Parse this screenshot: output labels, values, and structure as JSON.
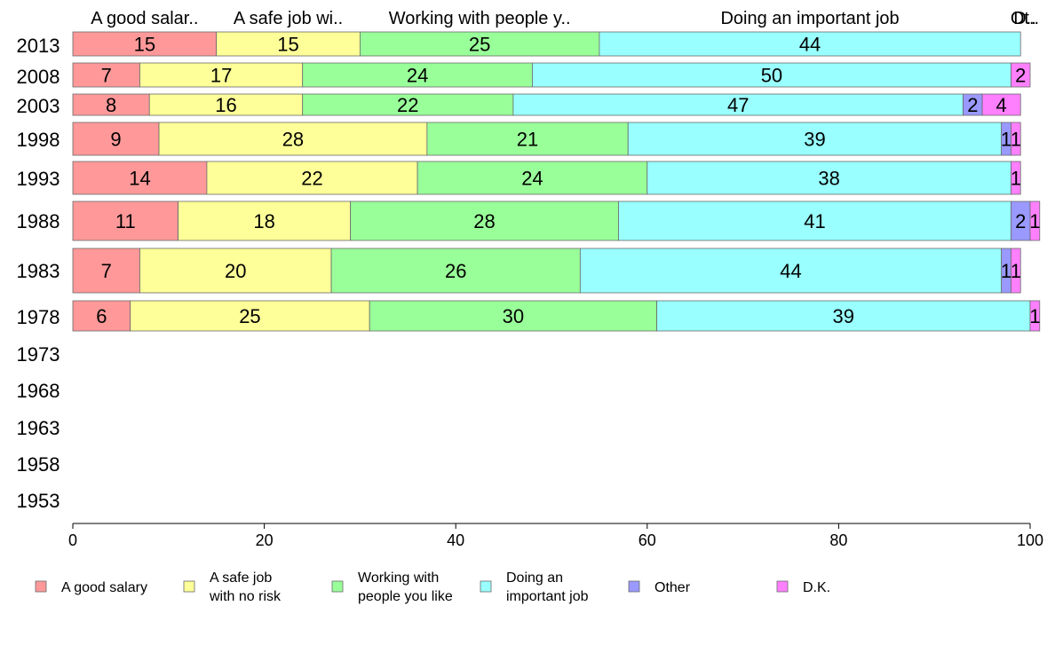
{
  "chart_data": {
    "type": "bar",
    "orientation": "horizontal",
    "stacked": true,
    "xlim": [
      0,
      100
    ],
    "x_ticks": [
      0,
      20,
      40,
      60,
      80,
      100
    ],
    "grid": false,
    "legend_position": "bottom",
    "categories": [
      "2013",
      "2008",
      "2003",
      "1998",
      "1993",
      "1988",
      "1983",
      "1978",
      "1973",
      "1968",
      "1963",
      "1958",
      "1953"
    ],
    "header_labels": [
      "A good salar..",
      "A safe job wi..",
      "Working with people y..",
      "Doing an important job",
      "Ot..",
      "D.."
    ],
    "series": [
      {
        "name": "A good salary",
        "legend_lines": [
          "A good salary"
        ],
        "color": "#ff9999",
        "values": [
          15,
          7,
          8,
          9,
          14,
          11,
          7,
          6,
          null,
          null,
          null,
          null,
          null
        ],
        "labels": [
          "15",
          "7",
          "8",
          "9",
          "14",
          "11",
          "7",
          "6",
          "",
          "",
          "",
          "",
          ""
        ]
      },
      {
        "name": "A safe job with no risk",
        "legend_lines": [
          "A safe job",
          "with no risk"
        ],
        "color": "#ffff99",
        "values": [
          15,
          17,
          16,
          28,
          22,
          18,
          20,
          25,
          null,
          null,
          null,
          null,
          null
        ],
        "labels": [
          "15",
          "17",
          "16",
          "28",
          "22",
          "18",
          "20",
          "25",
          "",
          "",
          "",
          "",
          ""
        ]
      },
      {
        "name": "Working with people you like",
        "legend_lines": [
          "Working with",
          "people you like"
        ],
        "color": "#99ff99",
        "values": [
          25,
          24,
          22,
          21,
          24,
          28,
          26,
          30,
          null,
          null,
          null,
          null,
          null
        ],
        "labels": [
          "25",
          "24",
          "22",
          "21",
          "24",
          "28",
          "26",
          "30",
          "",
          "",
          "",
          "",
          ""
        ]
      },
      {
        "name": "Doing an important job",
        "legend_lines": [
          "Doing an",
          "important job"
        ],
        "color": "#99ffff",
        "values": [
          44,
          50,
          47,
          39,
          38,
          41,
          44,
          39,
          null,
          null,
          null,
          null,
          null
        ],
        "labels": [
          "44",
          "50",
          "47",
          "39",
          "38",
          "41",
          "44",
          "39",
          "",
          "",
          "",
          "",
          ""
        ]
      },
      {
        "name": "Other",
        "legend_lines": [
          "Other"
        ],
        "color": "#9999ff",
        "values": [
          0,
          0,
          2,
          1,
          0,
          2,
          1,
          0,
          null,
          null,
          null,
          null,
          null
        ],
        "labels": [
          "",
          "",
          "2",
          "1",
          "",
          "2",
          "1",
          "",
          "",
          "",
          "",
          "",
          ""
        ]
      },
      {
        "name": "D.K.",
        "legend_lines": [
          "D.K."
        ],
        "color": "#ff80ff",
        "values": [
          0,
          2,
          4,
          1,
          1,
          1,
          1,
          1,
          null,
          null,
          null,
          null,
          null
        ],
        "labels": [
          "",
          "2",
          "4",
          "1",
          "1",
          "1",
          "1",
          "1",
          "",
          "",
          "",
          "",
          ""
        ]
      }
    ]
  }
}
